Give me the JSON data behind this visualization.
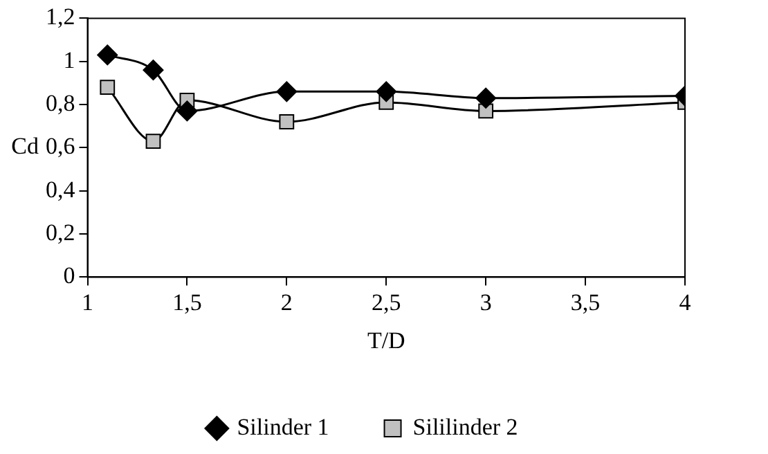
{
  "chart_data": {
    "type": "line",
    "xlabel": "T/D",
    "ylabel": "Cd",
    "xlim": [
      1,
      4
    ],
    "xticks": [
      1,
      {
        "value": 1.5,
        "label": "1,5"
      },
      2,
      {
        "value": 2.5,
        "label": "2,5"
      },
      3,
      {
        "value": 3.5,
        "label": "3,5"
      },
      4
    ],
    "ylim": [
      0,
      1.2
    ],
    "yticks": [
      0,
      {
        "value": 0.2,
        "label": "0,2"
      },
      {
        "value": 0.4,
        "label": "0,4"
      },
      {
        "value": 0.6,
        "label": "0,6"
      },
      {
        "value": 0.8,
        "label": "0,8"
      },
      1,
      {
        "value": 1.2,
        "label": "1,2"
      }
    ],
    "grid": false,
    "legend": "bottom",
    "line_style": "solid",
    "series": [
      {
        "name": "Silinder 1",
        "color": "#000000",
        "marker": "diamond",
        "x": [
          1.1,
          1.33,
          1.5,
          2,
          2.5,
          3,
          4
        ],
        "values": [
          1.03,
          0.96,
          0.77,
          0.86,
          0.86,
          0.83,
          0.84
        ]
      },
      {
        "name": "Sililinder 2",
        "color": "#c0c0c0",
        "marker": "square",
        "x": [
          1.1,
          1.33,
          1.5,
          2,
          2.5,
          3,
          4
        ],
        "values": [
          0.88,
          0.63,
          0.82,
          0.72,
          0.81,
          0.77,
          0.81
        ]
      }
    ]
  }
}
